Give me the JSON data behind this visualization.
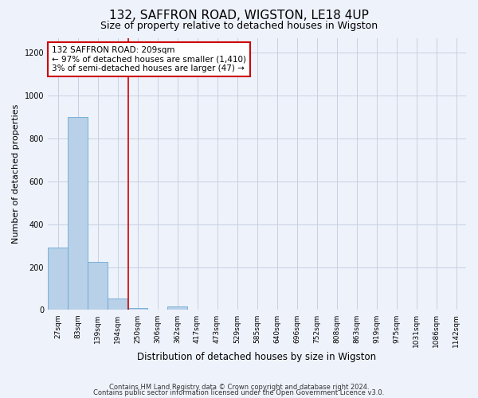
{
  "title": "132, SAFFRON ROAD, WIGSTON, LE18 4UP",
  "subtitle": "Size of property relative to detached houses in Wigston",
  "xlabel": "Distribution of detached houses by size in Wigston",
  "ylabel": "Number of detached properties",
  "categories": [
    "27sqm",
    "83sqm",
    "139sqm",
    "194sqm",
    "250sqm",
    "306sqm",
    "362sqm",
    "417sqm",
    "473sqm",
    "529sqm",
    "585sqm",
    "640sqm",
    "696sqm",
    "752sqm",
    "808sqm",
    "863sqm",
    "919sqm",
    "975sqm",
    "1031sqm",
    "1086sqm",
    "1142sqm"
  ],
  "values": [
    290,
    900,
    225,
    55,
    10,
    0,
    15,
    0,
    0,
    0,
    0,
    0,
    0,
    0,
    0,
    0,
    0,
    0,
    0,
    0,
    0
  ],
  "bar_color": "#b8d0e8",
  "bar_edge_color": "#6aaad4",
  "annotation_box_text": "132 SAFFRON ROAD: 209sqm\n← 97% of detached houses are smaller (1,410)\n3% of semi-detached houses are larger (47) →",
  "annotation_box_color": "#cc0000",
  "annotation_box_fill": "#ffffff",
  "vline_color": "#cc0000",
  "vline_x": 3.55,
  "ylim": [
    0,
    1270
  ],
  "yticks": [
    0,
    200,
    400,
    600,
    800,
    1000,
    1200
  ],
  "grid_color": "#c8d0e0",
  "bg_color": "#eef2fb",
  "footer_line1": "Contains HM Land Registry data © Crown copyright and database right 2024.",
  "footer_line2": "Contains public sector information licensed under the Open Government Licence v3.0.",
  "title_fontsize": 11,
  "subtitle_fontsize": 9,
  "axis_label_fontsize": 8,
  "tick_fontsize": 6.5,
  "annotation_fontsize": 7.5,
  "footer_fontsize": 6
}
